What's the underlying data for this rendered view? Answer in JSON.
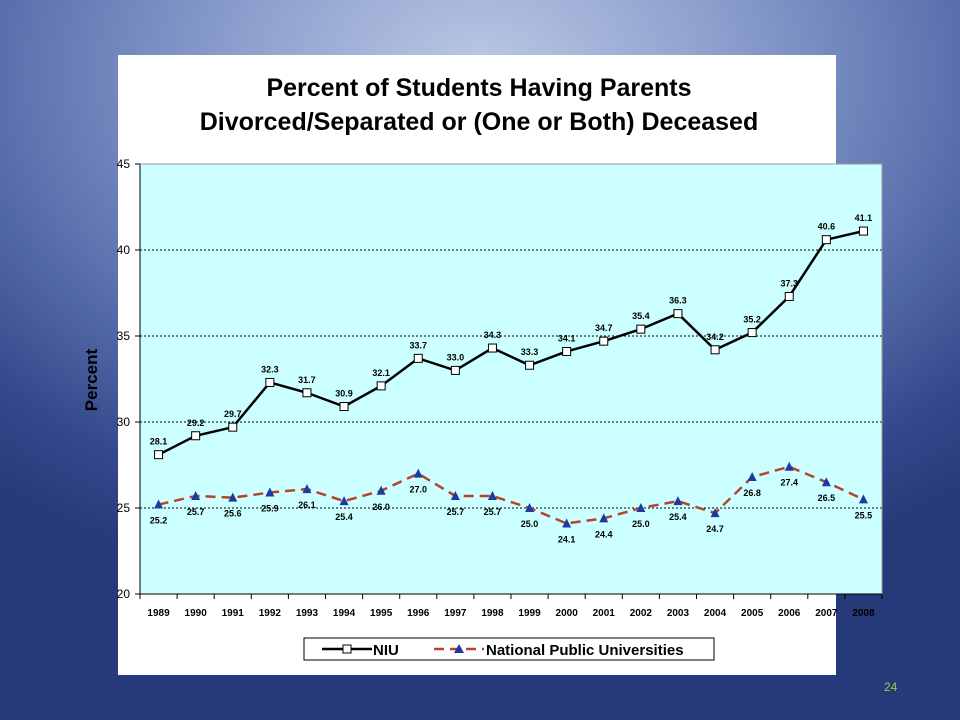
{
  "slide": {
    "page_number": "24"
  },
  "chart_data": {
    "type": "line",
    "title_lines": [
      "Percent of Students Having Parents",
      "Divorced/Separated or (One or Both) Deceased"
    ],
    "xlabel": "",
    "ylabel": "Percent",
    "ylim": [
      20,
      45
    ],
    "yticks": [
      "20",
      "25",
      "30",
      "35",
      "40",
      "45"
    ],
    "categories": [
      "1989",
      "1990",
      "1991",
      "1992",
      "1993",
      "1994",
      "1995",
      "1996",
      "1997",
      "1998",
      "1999",
      "2000",
      "2001",
      "2002",
      "2003",
      "2004",
      "2005",
      "2006",
      "2007",
      "2008"
    ],
    "series": [
      {
        "name": "NIU",
        "color": "#000000",
        "marker": "square",
        "line_style": "solid",
        "values": [
          28.1,
          29.2,
          29.7,
          32.3,
          31.7,
          30.9,
          32.1,
          33.7,
          33.0,
          34.3,
          33.3,
          34.1,
          34.7,
          35.4,
          36.3,
          34.2,
          35.2,
          37.3,
          40.6,
          41.1
        ],
        "labels": [
          "28.1",
          "29.2",
          "29.7",
          "32.3",
          "31.7",
          "30.9",
          "32.1",
          "33.7",
          "33.0",
          "34.3",
          "33.3",
          "34.1",
          "34.7",
          "35.4",
          "36.3",
          "34.2",
          "35.2",
          "37.3",
          "40.6",
          "41.1"
        ]
      },
      {
        "name": "National Public Universities",
        "color": "#b5442a",
        "marker_color": "#1f3a9e",
        "marker": "triangle",
        "line_style": "dashed",
        "values": [
          25.2,
          25.7,
          25.6,
          25.9,
          26.1,
          25.4,
          26.0,
          27.0,
          25.7,
          25.7,
          25.0,
          24.1,
          24.4,
          25.0,
          25.4,
          24.7,
          26.8,
          27.4,
          26.5,
          25.5
        ],
        "labels": [
          "25.2",
          "25.7",
          "25.6",
          "25.9",
          "26.1",
          "25.4",
          "26.0",
          "27.0",
          "25.7",
          "25.7",
          "25.0",
          "24.1",
          "24.4",
          "25.0",
          "25.4",
          "24.7",
          "26.8",
          "27.4",
          "26.5",
          "25.5"
        ]
      }
    ],
    "grid": true,
    "plot_background": "#ccffff",
    "legend_position": "bottom"
  }
}
